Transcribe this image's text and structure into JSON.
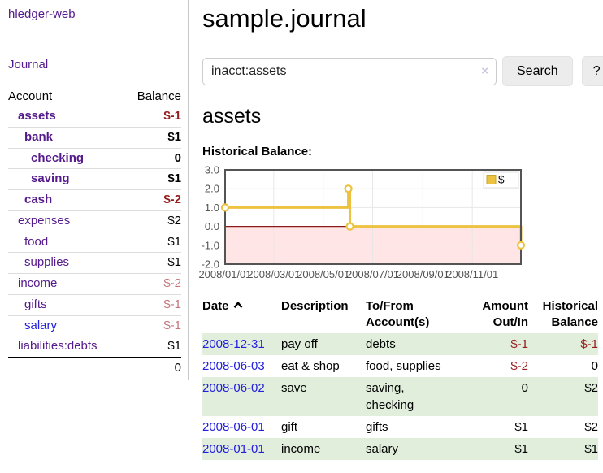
{
  "sidebar": {
    "app_title": "hledger-web",
    "nav": [
      {
        "label": "Journal"
      }
    ],
    "accounts_table": {
      "headers": {
        "account": "Account",
        "balance": "Balance"
      },
      "rows": [
        {
          "name": "assets",
          "level": 1,
          "bold": true,
          "amount": "$-1",
          "amount_class": "neg"
        },
        {
          "name": "bank",
          "level": 2,
          "bold": true,
          "amount": "$1",
          "amount_class": ""
        },
        {
          "name": "checking",
          "level": 3,
          "bold": true,
          "amount": "0",
          "amount_class": ""
        },
        {
          "name": "saving",
          "level": 3,
          "bold": true,
          "amount": "$1",
          "amount_class": ""
        },
        {
          "name": "cash",
          "level": 2,
          "bold": true,
          "amount": "$-2",
          "amount_class": "neg"
        },
        {
          "name": "expenses",
          "level": 1,
          "bold": false,
          "amount": "$2",
          "amount_class": ""
        },
        {
          "name": "food",
          "level": 2,
          "bold": false,
          "amount": "$1",
          "amount_class": ""
        },
        {
          "name": "supplies",
          "level": 2,
          "bold": false,
          "amount": "$1",
          "amount_class": ""
        },
        {
          "name": "income",
          "level": 1,
          "bold": false,
          "amount": "$-2",
          "amount_class": "neg-soft"
        },
        {
          "name": "gifts",
          "level": 2,
          "bold": false,
          "amount": "$-1",
          "amount_class": "neg-soft"
        },
        {
          "name": "salary",
          "level": 2,
          "bold": false,
          "amount": "$-1",
          "amount_class": "neg-soft",
          "unvisited": true
        },
        {
          "name": "liabilities:debts",
          "level": 1,
          "bold": false,
          "amount": "$1",
          "amount_class": ""
        }
      ],
      "total": "0"
    }
  },
  "main": {
    "title": "sample.journal",
    "search": {
      "value": "inacct:assets",
      "clear_icon": "×",
      "button_label": "Search",
      "help_label": "?"
    },
    "account_heading": "assets",
    "chart_label": "Historical Balance:",
    "register": {
      "columns": [
        "Date",
        "Description",
        "To/From Account(s)",
        "Amount Out/In",
        "Historical Balance"
      ],
      "sort": {
        "column": "Date",
        "direction": "ascending"
      },
      "rows": [
        {
          "date": "2008-12-31",
          "description": "pay off",
          "accounts": "debts",
          "amount": "$-1",
          "amount_negative": true,
          "balance": "$-1",
          "balance_negative": true
        },
        {
          "date": "2008-06-03",
          "description": "eat & shop",
          "accounts": "food, supplies",
          "amount": "$-2",
          "amount_negative": true,
          "balance": "0",
          "balance_negative": false
        },
        {
          "date": "2008-06-02",
          "description": "save",
          "accounts": "saving, checking",
          "amount": "0",
          "amount_negative": false,
          "balance": "$2",
          "balance_negative": false
        },
        {
          "date": "2008-06-01",
          "description": "gift",
          "accounts": "gifts",
          "amount": "$1",
          "amount_negative": false,
          "balance": "$2",
          "balance_negative": false
        },
        {
          "date": "2008-01-01",
          "description": "income",
          "accounts": "salary",
          "amount": "$1",
          "amount_negative": false,
          "balance": "$1",
          "balance_negative": false
        }
      ]
    }
  },
  "chart_data": {
    "type": "line",
    "step": true,
    "title": "Historical Balance",
    "xlabel": "",
    "ylabel": "",
    "xlim_days": [
      0,
      365
    ],
    "ylim": [
      -2,
      3
    ],
    "grid": true,
    "legend_position": "top-right",
    "legend": [
      {
        "label": "$",
        "color": "#edc240"
      }
    ],
    "y_ticks": [
      {
        "label": "3.0",
        "value": 3
      },
      {
        "label": "2.0",
        "value": 2
      },
      {
        "label": "1.0",
        "value": 1
      },
      {
        "label": "0.0",
        "value": 0
      },
      {
        "label": "-1.0",
        "value": -1
      },
      {
        "label": "-2.0",
        "value": -2
      }
    ],
    "x_ticks": [
      {
        "label": "2008/01/01",
        "day": 0
      },
      {
        "label": "2008/03/01",
        "day": 60
      },
      {
        "label": "2008/05/01",
        "day": 121
      },
      {
        "label": "2008/07/01",
        "day": 182
      },
      {
        "label": "2008/09/01",
        "day": 244
      },
      {
        "label": "2008/11/01",
        "day": 305
      }
    ],
    "series": [
      {
        "name": "$",
        "color": "#edc240",
        "marker_fill": "#ffffff",
        "points": [
          {
            "date": "2008/01/01",
            "day": 0,
            "value": 1.0
          },
          {
            "date": "2008/06/01",
            "day": 152,
            "value": 2.0
          },
          {
            "date": "2008/06/03",
            "day": 154,
            "value": 0.0
          },
          {
            "date": "2008/12/31",
            "day": 365,
            "value": -1.0
          }
        ]
      }
    ],
    "grid_color": "#e7e7e7",
    "frame_color": "#545454",
    "zero_line_color": "#8b1a1a",
    "negative_region_fill": "rgba(255,0,0,0.10)"
  },
  "colors": {
    "visited_link_purple": "#551a8b",
    "unvisited_link_blue": "#2420dd",
    "negative_amount": "#951d1d",
    "negative_amount_soft": "#c4777c",
    "row_stripe_green": "#e0eedb",
    "button_bg": "#ececec",
    "divider": "#c9c9c9",
    "series_yellow": "#edc240"
  }
}
